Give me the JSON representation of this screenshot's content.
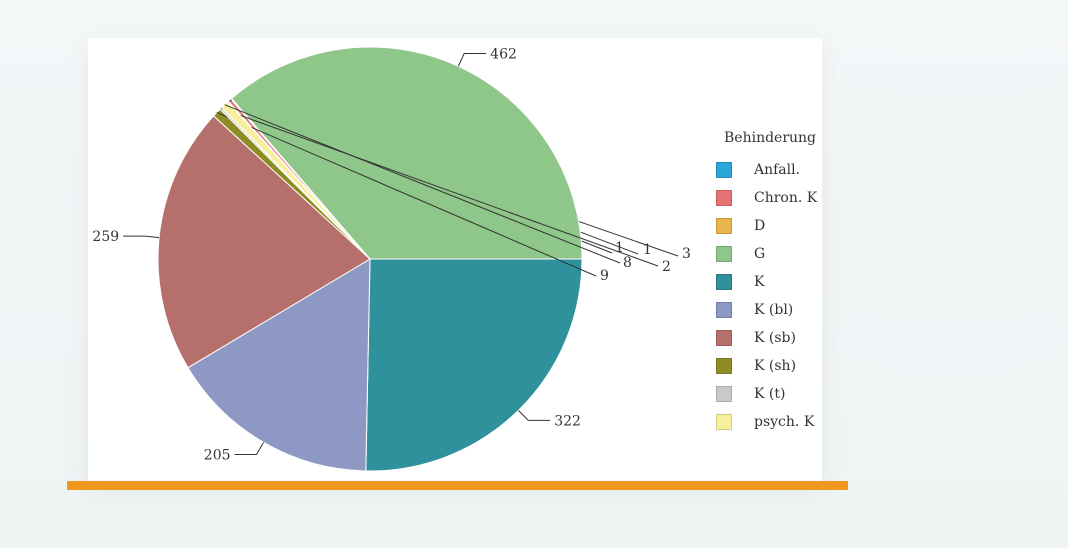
{
  "chart_data": {
    "type": "pie",
    "legend_title": "Behinderung",
    "legend_position": "right",
    "slices": [
      {
        "label": "Anfall.",
        "value": 1,
        "color": "#2aa6d8"
      },
      {
        "label": "Chron. K",
        "value": 3,
        "color": "#e57373"
      },
      {
        "label": "D",
        "value": 1,
        "color": "#e9b44c"
      },
      {
        "label": "G",
        "value": 462,
        "color": "#8fc689"
      },
      {
        "label": "K",
        "value": 322,
        "color": "#2f919b"
      },
      {
        "label": "K (bl)",
        "value": 205,
        "color": "#8e98c4"
      },
      {
        "label": "K (sb)",
        "value": 259,
        "color": "#b5706b"
      },
      {
        "label": "K (sh)",
        "value": 9,
        "color": "#8e8d25"
      },
      {
        "label": "K (t)",
        "value": 2,
        "color": "#c9c9cc"
      },
      {
        "label": "psych. K",
        "value": 8,
        "color": "#f7ef9c"
      }
    ]
  }
}
